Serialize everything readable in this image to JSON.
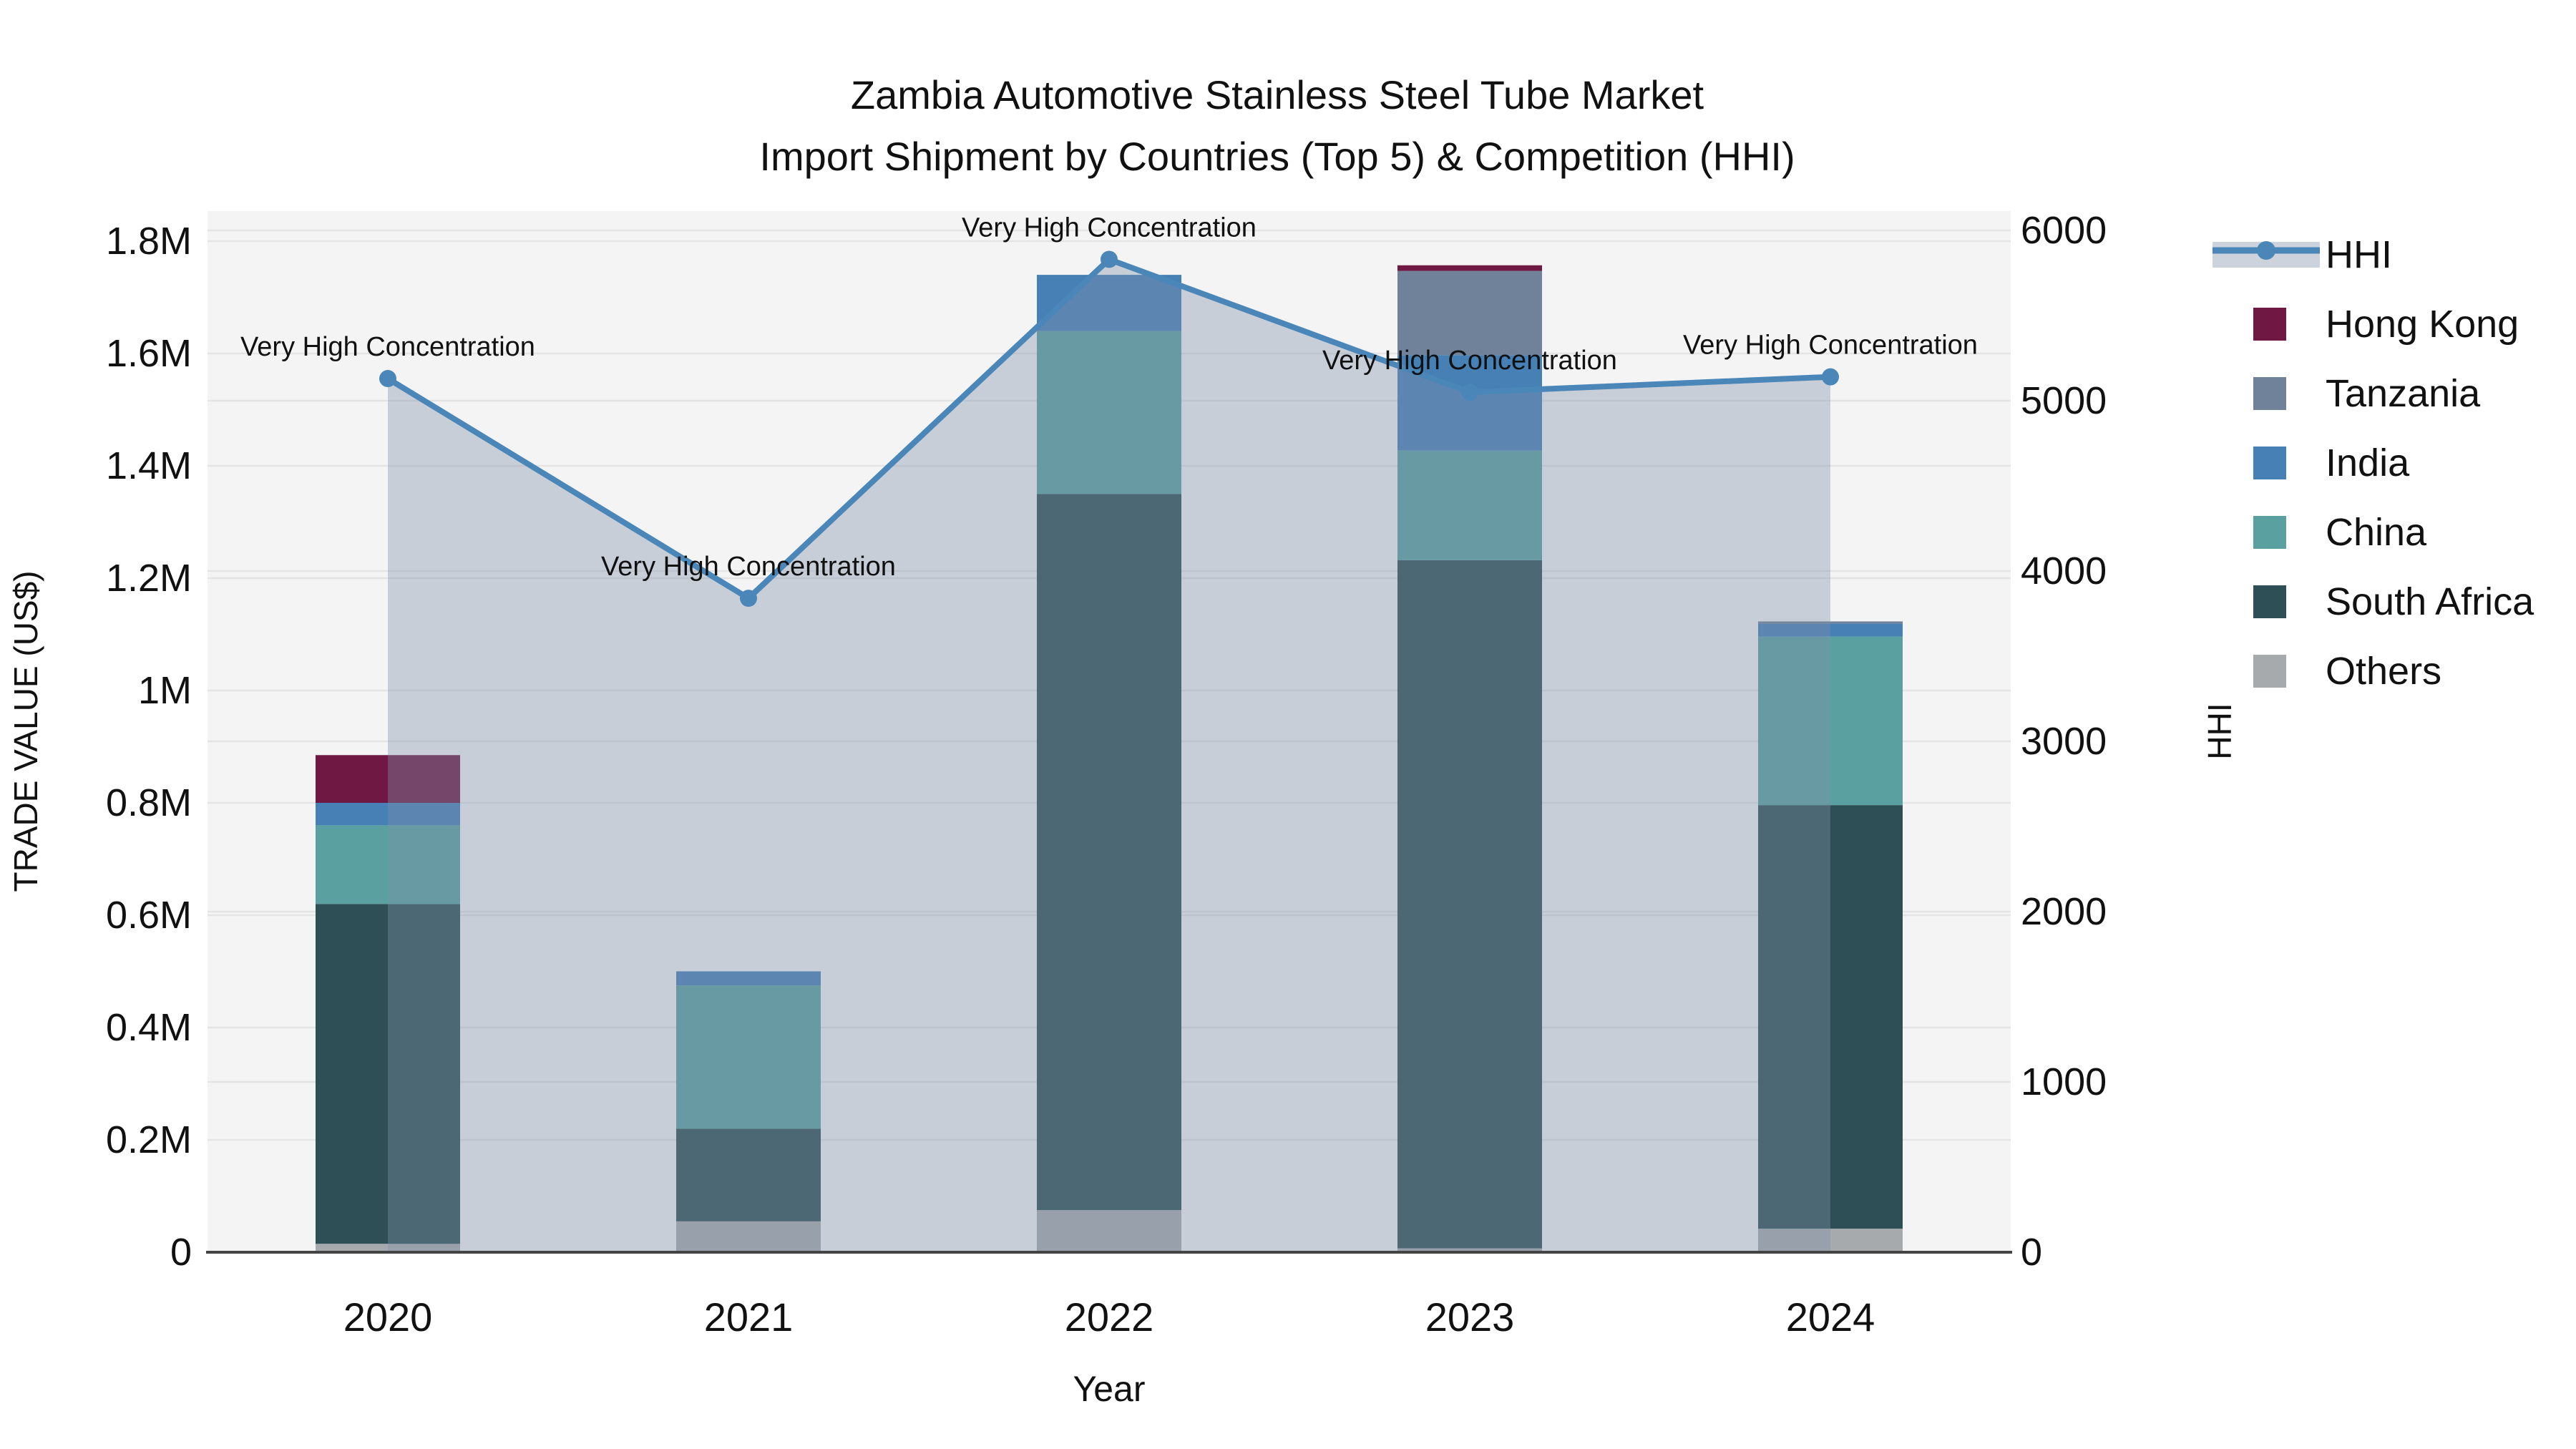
{
  "title": {
    "line1": "Zambia Automotive Stainless Steel Tube Market",
    "line2": "Import Shipment by Countries (Top 5) & Competition (HHI)"
  },
  "colors": {
    "background": "#ffffff",
    "plot_background": "#f4f4f4",
    "gridline": "#e4e4e4",
    "axis_line": "#444444",
    "text": "#111111",
    "hhi_line": "#4a86b8",
    "hhi_area_fill": "rgba(128,144,172,0.38)",
    "legend_area_swatch": "#ccd3dc"
  },
  "chart_data": {
    "type": "composed",
    "subtypes": [
      "stacked-bar",
      "line",
      "area"
    ],
    "title": "Zambia Automotive Stainless Steel Tube Market — Import Shipment by Countries (Top 5) & Competition (HHI)",
    "categories": [
      "2020",
      "2021",
      "2022",
      "2023",
      "2024"
    ],
    "xlabel": "Year",
    "ylabel_left": "TRADE VALUE (US$)",
    "ylabel_right": "HHI",
    "ylim_left_musd": [
      0,
      1.85
    ],
    "ylim_right": [
      0,
      6100
    ],
    "yticks_left": {
      "values_musd": [
        0,
        0.2,
        0.4,
        0.6,
        0.8,
        1.0,
        1.2,
        1.4,
        1.6,
        1.8
      ],
      "labels": [
        "0",
        "0.2M",
        "0.4M",
        "0.6M",
        "0.8M",
        "1M",
        "1.2M",
        "1.4M",
        "1.6M",
        "1.8M"
      ]
    },
    "yticks_right": {
      "values": [
        0,
        1000,
        2000,
        3000,
        4000,
        5000,
        6000
      ],
      "labels": [
        "0",
        "1000",
        "2000",
        "3000",
        "4000",
        "5000",
        "6000"
      ]
    },
    "grid": true,
    "units_note": "bar values in million US$, read from axis",
    "bar_series_bottom_to_top": [
      {
        "name": "Others",
        "color": "#a7aaad",
        "values_musd": [
          0.015,
          0.055,
          0.075,
          0.007,
          0.042
        ]
      },
      {
        "name": "South Africa",
        "color": "#2e4f55",
        "values_musd": [
          0.605,
          0.165,
          1.275,
          1.225,
          0.754
        ]
      },
      {
        "name": "China",
        "color": "#5aa0a1",
        "values_musd": [
          0.14,
          0.255,
          0.29,
          0.195,
          0.3
        ]
      },
      {
        "name": "India",
        "color": "#4680b5",
        "values_musd": [
          0.04,
          0.025,
          0.1,
          0.17,
          0.023
        ]
      },
      {
        "name": "Tanzania",
        "color": "#70829a",
        "values_musd": [
          0,
          0,
          0,
          0.15,
          0.004
        ]
      },
      {
        "name": "Hong Kong",
        "color": "#6e1843",
        "values_musd": [
          0.085,
          0,
          0,
          0.01,
          0
        ]
      }
    ],
    "line_series": {
      "name": "HHI",
      "axis": "right",
      "color": "#4a86b8",
      "area_fill": "rgba(128,144,172,0.38)",
      "values": [
        5130,
        3840,
        5830,
        5050,
        5140
      ]
    },
    "annotations": [
      {
        "category": "2020",
        "text": "Very High Concentration"
      },
      {
        "category": "2021",
        "text": "Very High Concentration"
      },
      {
        "category": "2022",
        "text": "Very High Concentration"
      },
      {
        "category": "2023",
        "text": "Very High Concentration"
      },
      {
        "category": "2024",
        "text": "Very High Concentration"
      }
    ],
    "legend": {
      "position": "right",
      "entries": [
        {
          "label": "HHI",
          "type": "line",
          "color": "#4a86b8"
        },
        {
          "label": "Hong Kong",
          "type": "box",
          "color": "#6e1843"
        },
        {
          "label": "Tanzania",
          "type": "box",
          "color": "#70829a"
        },
        {
          "label": "India",
          "type": "box",
          "color": "#4680b5"
        },
        {
          "label": "China",
          "type": "box",
          "color": "#5aa0a1"
        },
        {
          "label": "South Africa",
          "type": "box",
          "color": "#2e4f55"
        },
        {
          "label": "Others",
          "type": "box",
          "color": "#a7aaad"
        }
      ]
    }
  }
}
